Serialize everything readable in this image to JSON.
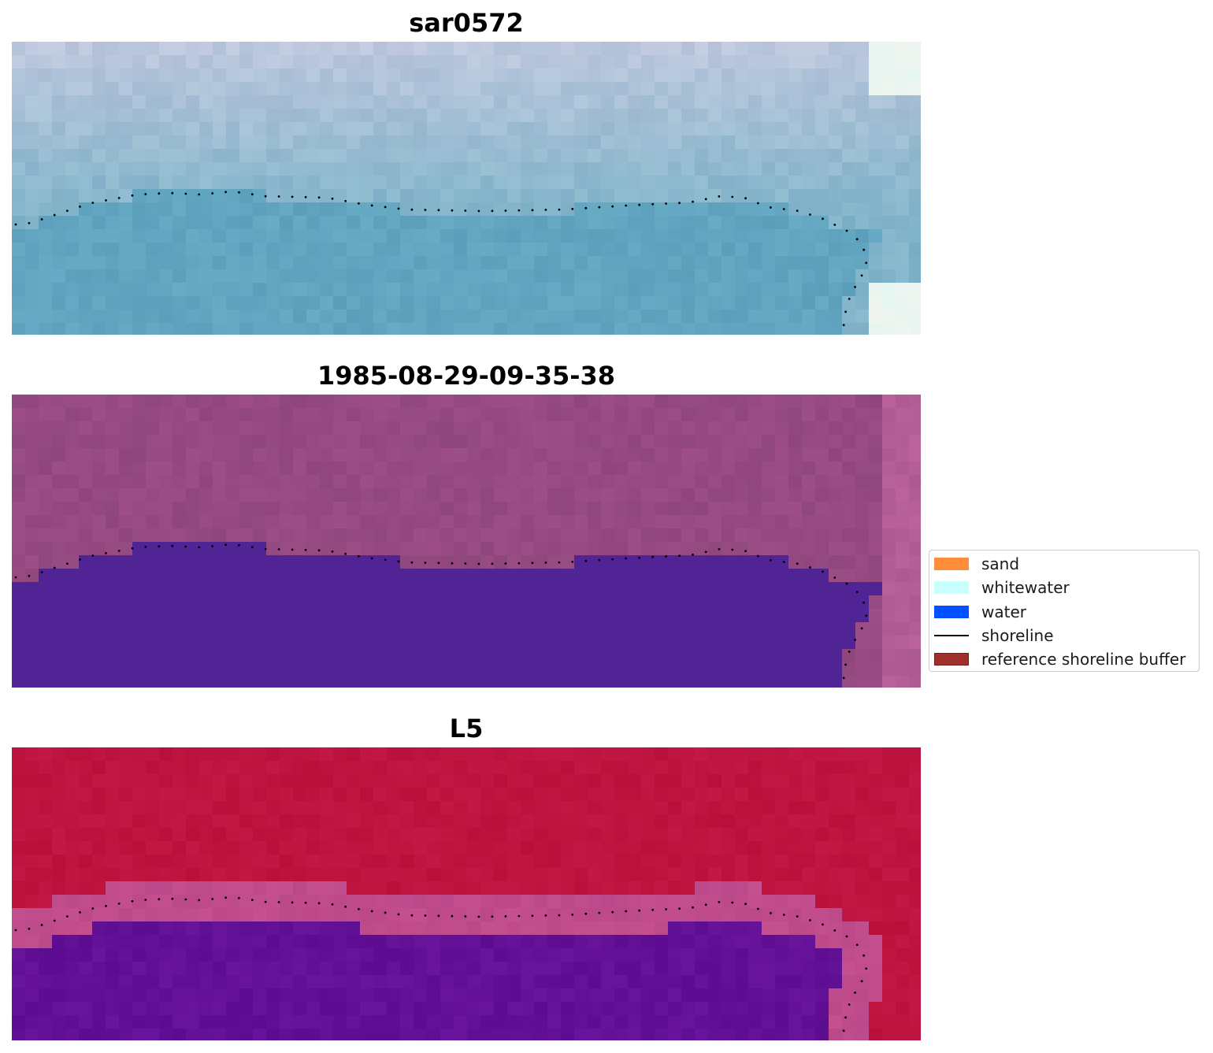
{
  "panels": [
    {
      "title": "sar0572",
      "style": "sar"
    },
    {
      "title": "1985-08-29-09-35-38",
      "style": "classified"
    },
    {
      "title": "L5",
      "style": "index"
    }
  ],
  "legend": {
    "items": [
      {
        "label": "sand",
        "kind": "patch",
        "color": "#ff8c3a"
      },
      {
        "label": "whitewater",
        "kind": "patch",
        "color": "#c8ffff"
      },
      {
        "label": "water",
        "kind": "patch",
        "color": "#0050ff"
      },
      {
        "label": "shoreline",
        "kind": "line",
        "color": "#000000"
      },
      {
        "label": "reference shoreline buffer",
        "kind": "patch-outline",
        "color": "#a0302c",
        "edge": "#7a1a18"
      }
    ]
  },
  "colors": {
    "water_class": "#512496",
    "land_class_base": "#964a82",
    "index_land": "#bd1644",
    "index_water": "#620c9c",
    "index_buffer": "#c04c8c"
  }
}
